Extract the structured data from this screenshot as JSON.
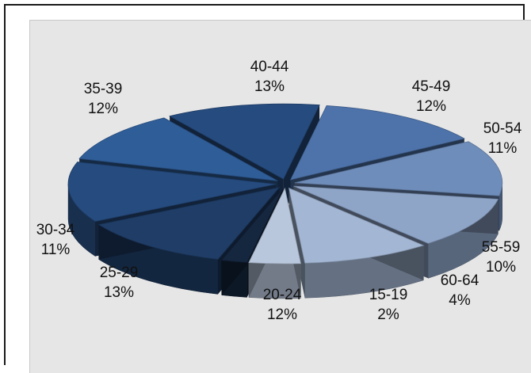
{
  "chart_data": {
    "type": "pie",
    "title": "",
    "slices": [
      {
        "label": "15-19",
        "percent": "2%",
        "value": 2,
        "color": "#15263f"
      },
      {
        "label": "20-24",
        "percent": "12%",
        "value": 12,
        "color": "#1f3d66"
      },
      {
        "label": "25-29",
        "percent": "13%",
        "value": 13,
        "color": "#264b7e"
      },
      {
        "label": "30-34",
        "percent": "11%",
        "value": 11,
        "color": "#2f5d97"
      },
      {
        "label": "35-39",
        "percent": "12%",
        "value": 12,
        "color": "#264b7e"
      },
      {
        "label": "40-44",
        "percent": "13%",
        "value": 13,
        "color": "#4e73aa"
      },
      {
        "label": "45-49",
        "percent": "12%",
        "value": 12,
        "color": "#6f8dba"
      },
      {
        "label": "50-54",
        "percent": "11%",
        "value": 11,
        "color": "#8ea5c8"
      },
      {
        "label": "55-59",
        "percent": "10%",
        "value": 10,
        "color": "#a3b6d3"
      },
      {
        "label": "60-64",
        "percent": "4%",
        "value": 4,
        "color": "#b9c7dd"
      }
    ]
  }
}
